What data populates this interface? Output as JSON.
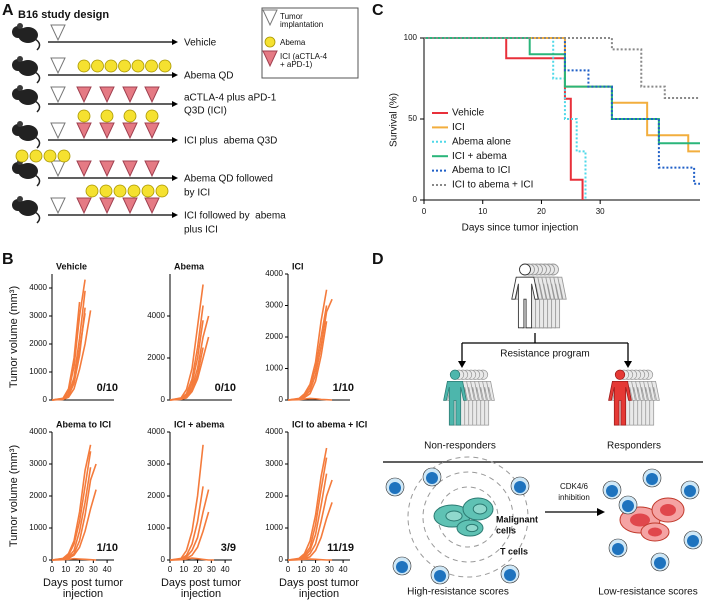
{
  "panel_labels": [
    "A",
    "B",
    "C",
    "D"
  ],
  "design": {
    "title": "B16 study design",
    "legend": [
      [
        "Tumor",
        "implantation"
      ],
      [
        "Abema"
      ],
      [
        "ICI (aCTLA-4",
        "+ aPD-1)"
      ]
    ],
    "arms": [
      [
        "Vehicle"
      ],
      [
        "Abema QD"
      ],
      [
        "aCTLA-4 plus aPD-1",
        "Q3D (ICI)"
      ],
      [
        "ICI plus  abema Q3D"
      ],
      [
        "Abema QD followed",
        "by ICI"
      ],
      [
        "ICI followed by  abema",
        "plus ICI"
      ]
    ]
  },
  "chart_data": [
    {
      "type": "step",
      "x_label": "Days since tumor injection",
      "y_label": "Survival (%)",
      "xlim": [
        0,
        47
      ],
      "xticks": [
        0,
        10,
        20,
        30
      ],
      "ylim": [
        0,
        100
      ],
      "yticks": [
        0,
        50,
        100
      ],
      "series": [
        {
          "name": "Vehicle",
          "color": "#e8303a",
          "style": "solid",
          "x": [
            0,
            14,
            24,
            25,
            27
          ],
          "values": [
            100,
            87.5,
            62.5,
            12.5,
            0
          ]
        },
        {
          "name": "ICI",
          "color": "#f2ae3d",
          "style": "solid",
          "x": [
            0,
            24,
            32,
            38,
            45
          ],
          "values": [
            100,
            70,
            60,
            40,
            30
          ]
        },
        {
          "name": "Abema alone",
          "color": "#4fd8e8",
          "style": "dotted",
          "x": [
            0,
            22,
            24,
            26,
            27.5
          ],
          "values": [
            100,
            75,
            50,
            30,
            0
          ]
        },
        {
          "name": "ICI + abema",
          "color": "#2ab57a",
          "style": "solid",
          "x": [
            0,
            18,
            24,
            32,
            40
          ],
          "values": [
            100,
            90,
            70,
            50,
            35
          ]
        },
        {
          "name": "Abema to ICI",
          "color": "#1f5fc7",
          "style": "dotted",
          "x": [
            0,
            24,
            28,
            32,
            40,
            46
          ],
          "values": [
            100,
            80,
            70,
            50,
            20,
            10
          ]
        },
        {
          "name": "ICI to abema + ICI",
          "color": "#888888",
          "style": "dotted",
          "x": [
            0,
            32,
            37,
            41
          ],
          "values": [
            100,
            93,
            70,
            63
          ]
        }
      ]
    },
    {
      "type": "line",
      "title": "Vehicle",
      "annotation": "0/10",
      "y_label": "Tumor volume (mm³)",
      "color": "#f47b3c",
      "x": [
        0,
        8,
        12,
        16,
        20,
        24,
        28,
        32
      ],
      "xlim": [
        0,
        45
      ],
      "ylim": [
        0,
        4500
      ],
      "yticks": [
        0,
        1000,
        2000,
        3000,
        4000
      ],
      "series": [
        {
          "values": [
            0,
            50,
            300,
            1200,
            3000,
            4300,
            null,
            null
          ]
        },
        {
          "values": [
            0,
            40,
            200,
            800,
            2200,
            3900,
            null,
            null
          ]
        },
        {
          "values": [
            0,
            30,
            150,
            600,
            1600,
            3300,
            null,
            null
          ]
        },
        {
          "values": [
            0,
            60,
            400,
            1500,
            3500,
            null,
            null,
            null
          ]
        },
        {
          "values": [
            0,
            20,
            100,
            400,
            1100,
            2000,
            3200,
            null
          ]
        },
        {
          "values": [
            0,
            30,
            150,
            700,
            1800,
            3100,
            null,
            null
          ]
        }
      ]
    },
    {
      "type": "line",
      "title": "Abema",
      "annotation": "0/10",
      "color": "#f47b3c",
      "x": [
        0,
        8,
        12,
        16,
        20,
        24,
        28,
        32
      ],
      "xlim": [
        0,
        45
      ],
      "ylim": [
        0,
        6000
      ],
      "yticks": [
        0,
        2000,
        4000
      ],
      "series": [
        {
          "values": [
            0,
            100,
            500,
            1500,
            3500,
            5500,
            null,
            null
          ]
        },
        {
          "values": [
            0,
            80,
            300,
            1000,
            2500,
            4500,
            null,
            null
          ]
        },
        {
          "values": [
            0,
            50,
            200,
            800,
            2000,
            3800,
            null,
            null
          ]
        },
        {
          "values": [
            0,
            60,
            250,
            600,
            1500,
            3000,
            4000,
            null
          ]
        },
        {
          "values": [
            0,
            40,
            150,
            500,
            1200,
            2500,
            null,
            null
          ]
        },
        {
          "values": [
            0,
            30,
            100,
            400,
            1000,
            2000,
            3000,
            null
          ]
        }
      ]
    },
    {
      "type": "line",
      "title": "ICI",
      "annotation": "1/10",
      "color": "#f47b3c",
      "x": [
        0,
        8,
        12,
        16,
        20,
        24,
        28,
        32
      ],
      "xlim": [
        0,
        45
      ],
      "ylim": [
        0,
        4000
      ],
      "yticks": [
        0,
        1000,
        2000,
        3000,
        4000
      ],
      "series": [
        {
          "values": [
            0,
            50,
            200,
            500,
            1200,
            2500,
            3500,
            null
          ]
        },
        {
          "values": [
            0,
            30,
            150,
            400,
            1000,
            2000,
            3000,
            null
          ]
        },
        {
          "values": [
            0,
            40,
            100,
            300,
            800,
            1700,
            2800,
            3200
          ]
        },
        {
          "values": [
            0,
            20,
            80,
            200,
            600,
            1400,
            2500,
            null
          ]
        },
        {
          "values": [
            0,
            10,
            30,
            50,
            40,
            20,
            10,
            0
          ]
        }
      ]
    },
    {
      "type": "line",
      "title": "Abema to ICI",
      "annotation": "1/10",
      "y_label": "Tumor volume (mm³)",
      "x_label": [
        "Days post tumor",
        "injection"
      ],
      "color": "#f47b3c",
      "x": [
        0,
        8,
        12,
        16,
        20,
        24,
        28,
        32
      ],
      "xlim": [
        0,
        45
      ],
      "xticks": [
        0,
        10,
        20,
        30,
        40
      ],
      "ylim": [
        0,
        4000
      ],
      "yticks": [
        0,
        1000,
        2000,
        3000,
        4000
      ],
      "series": [
        {
          "values": [
            0,
            50,
            200,
            600,
            1500,
            2800,
            3600,
            null
          ]
        },
        {
          "values": [
            0,
            30,
            150,
            500,
            1200,
            2300,
            3400,
            null
          ]
        },
        {
          "values": [
            0,
            40,
            100,
            300,
            900,
            1800,
            2900,
            null
          ]
        },
        {
          "values": [
            0,
            20,
            80,
            200,
            600,
            1400,
            2500,
            3000
          ]
        },
        {
          "values": [
            0,
            10,
            50,
            150,
            400,
            900,
            1600,
            2200
          ]
        },
        {
          "values": [
            0,
            10,
            20,
            40,
            30,
            20,
            10,
            0
          ]
        }
      ]
    },
    {
      "type": "line",
      "title": "ICI + abema",
      "annotation": "3/9",
      "x_label": [
        "Days post tumor",
        "injection"
      ],
      "color": "#f47b3c",
      "x": [
        0,
        8,
        12,
        16,
        20,
        24,
        28,
        32
      ],
      "xlim": [
        0,
        45
      ],
      "xticks": [
        0,
        10,
        20,
        30,
        40
      ],
      "ylim": [
        0,
        4000
      ],
      "yticks": [
        0,
        1000,
        2000,
        3000,
        4000
      ],
      "series": [
        {
          "values": [
            0,
            50,
            300,
            900,
            2000,
            3600,
            null,
            null
          ]
        },
        {
          "values": [
            0,
            30,
            150,
            500,
            1200,
            2300,
            null,
            null
          ]
        },
        {
          "values": [
            0,
            20,
            100,
            300,
            700,
            1500,
            2200,
            null
          ]
        },
        {
          "values": [
            0,
            10,
            50,
            150,
            400,
            900,
            1500,
            null
          ]
        },
        {
          "values": [
            0,
            10,
            30,
            60,
            40,
            20,
            0,
            0
          ]
        }
      ]
    },
    {
      "type": "line",
      "title": "ICI to abema + ICI",
      "annotation": "11/19",
      "x_label": [
        "Days post tumor",
        "injection"
      ],
      "color": "#f47b3c",
      "x": [
        0,
        8,
        12,
        16,
        20,
        24,
        28,
        32
      ],
      "xlim": [
        0,
        45
      ],
      "xticks": [
        0,
        10,
        20,
        30,
        40
      ],
      "ylim": [
        0,
        4000
      ],
      "yticks": [
        0,
        1000,
        2000,
        3000,
        4000
      ],
      "series": [
        {
          "values": [
            0,
            50,
            200,
            600,
            1400,
            2600,
            3500,
            null
          ]
        },
        {
          "values": [
            0,
            30,
            150,
            400,
            1100,
            2200,
            3200,
            null
          ]
        },
        {
          "values": [
            0,
            20,
            100,
            300,
            800,
            1700,
            2700,
            null
          ]
        },
        {
          "values": [
            0,
            10,
            50,
            200,
            500,
            1200,
            2000,
            2500
          ]
        },
        {
          "values": [
            0,
            10,
            40,
            100,
            300,
            700,
            1300,
            1800
          ]
        },
        {
          "values": [
            0,
            10,
            20,
            30,
            20,
            10,
            0,
            0
          ]
        }
      ]
    }
  ],
  "diagram": {
    "branch_label": "Resistance program",
    "left_group": "Non-responders",
    "right_group": "Responders",
    "treatment": [
      "CDK4/6",
      "inhibition"
    ],
    "malignant": [
      "Malignant",
      "cells"
    ],
    "t_cells": "T cells",
    "left_state": "High-resistance scores",
    "right_state": "Low-resistance scores"
  }
}
